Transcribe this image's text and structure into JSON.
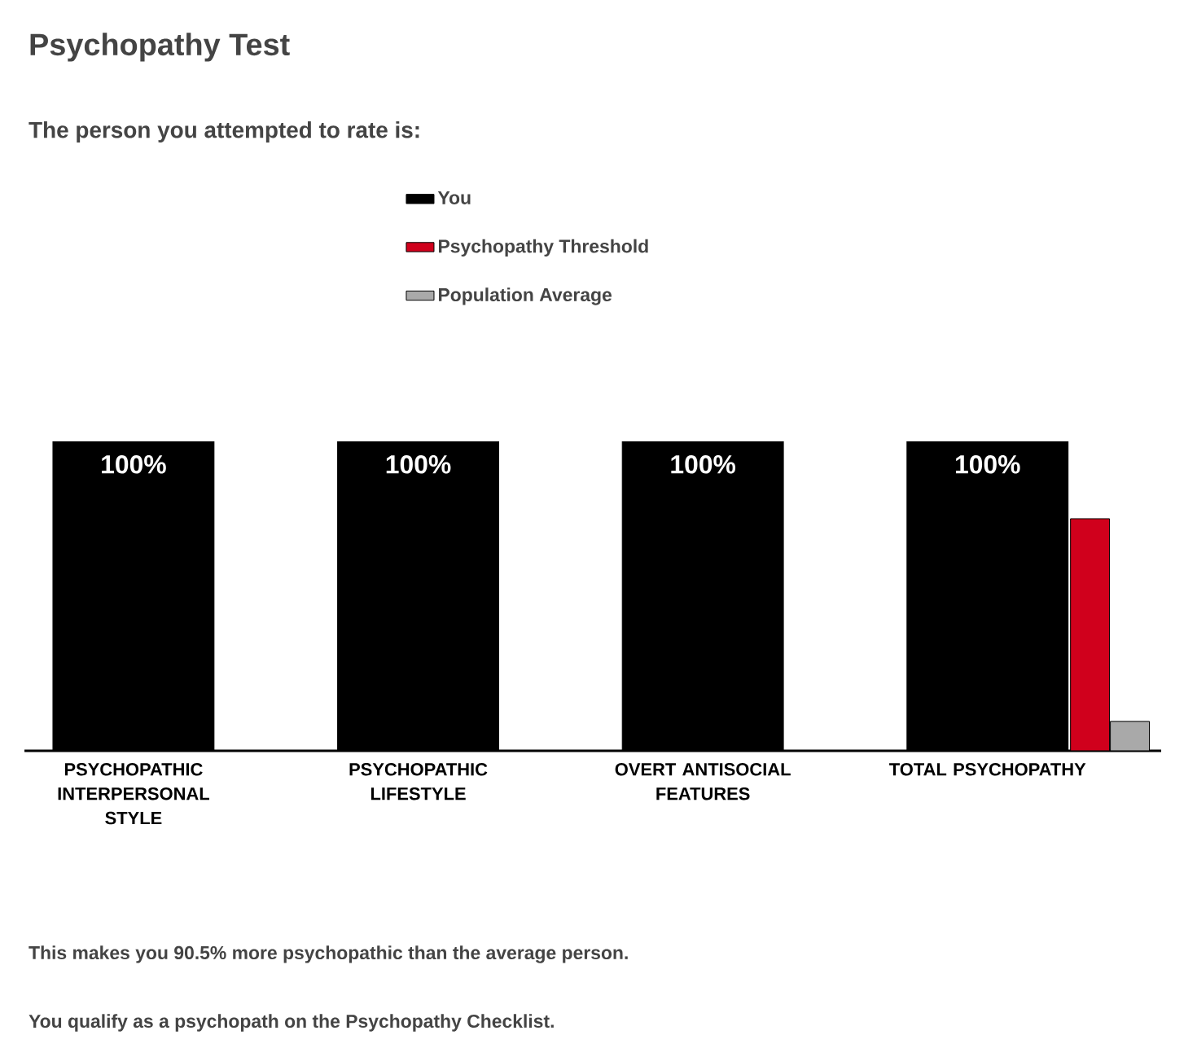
{
  "chart_data": {
    "type": "bar",
    "title": "Psychopathy Test",
    "subtitle": "The person you attempted to rate is:",
    "categories": [
      "PSYCHOPATHIC INTERPERSONAL STYLE",
      "PSYCHOPATHIC LIFESTYLE",
      "OVERT ANTISOCIAL FEATURES",
      "TOTAL PSYCHOPATHY"
    ],
    "series": [
      {
        "name": "You",
        "color": "#000000",
        "values": [
          100,
          100,
          100,
          100
        ],
        "value_labels": [
          "100%",
          "100%",
          "100%",
          "100%"
        ]
      },
      {
        "name": "Psychopathy Threshold",
        "color": "#d0001c",
        "values": [
          null,
          null,
          null,
          75
        ]
      },
      {
        "name": "Population Average",
        "color": "#a9a9a9",
        "values": [
          null,
          null,
          null,
          9.5
        ]
      }
    ],
    "ylim": [
      0,
      100
    ],
    "legend": "top",
    "tick_labels": "x",
    "annotations": [
      "This makes you 90.5% more psychopathic than the average person.",
      "You qualify as a psychopath on the Psychopathy Checklist."
    ]
  }
}
